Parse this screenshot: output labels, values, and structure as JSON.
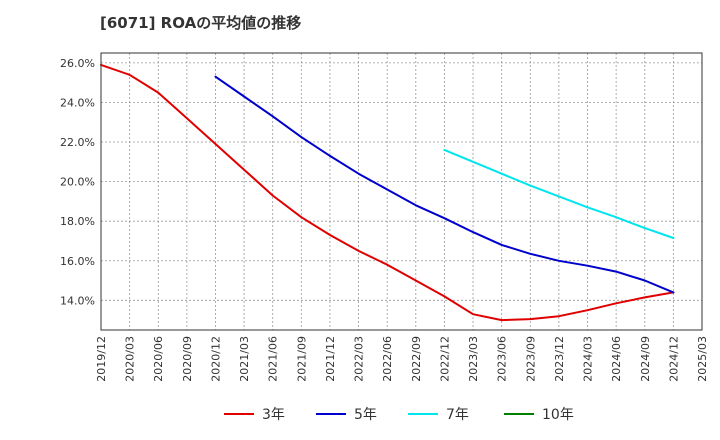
{
  "title": "[6071]  ROAの平均値の推移",
  "chart_data": {
    "type": "line",
    "title": "[6071]  ROAの平均値の推移",
    "xlabel": "",
    "ylabel": "",
    "x_ticks": [
      "2019/12",
      "2020/03",
      "2020/06",
      "2020/09",
      "2020/12",
      "2021/03",
      "2021/06",
      "2021/09",
      "2021/12",
      "2022/03",
      "2022/06",
      "2022/09",
      "2022/12",
      "2023/03",
      "2023/06",
      "2023/09",
      "2023/12",
      "2024/03",
      "2024/06",
      "2024/09",
      "2024/12",
      "2025/03"
    ],
    "y_ticks": [
      "14.0%",
      "16.0%",
      "18.0%",
      "20.0%",
      "22.0%",
      "24.0%",
      "26.0%"
    ],
    "ylim": [
      12.5,
      26.5
    ],
    "grid": true,
    "legend_position": "bottom",
    "series": [
      {
        "name": "3年",
        "color": "#e00000",
        "x": [
          "2019/12",
          "2020/03",
          "2020/06",
          "2020/09",
          "2020/12",
          "2021/03",
          "2021/06",
          "2021/09",
          "2021/12",
          "2022/03",
          "2022/06",
          "2022/09",
          "2022/12",
          "2023/03",
          "2023/06",
          "2023/09",
          "2023/12",
          "2024/03",
          "2024/06",
          "2024/09",
          "2024/12"
        ],
        "values": [
          25.9,
          25.4,
          24.5,
          23.2,
          21.9,
          20.6,
          19.3,
          18.2,
          17.3,
          16.5,
          15.8,
          15.0,
          14.2,
          13.3,
          13.0,
          13.05,
          13.2,
          13.5,
          13.85,
          14.15,
          14.4
        ]
      },
      {
        "name": "5年",
        "color": "#0000cc",
        "x": [
          "2020/12",
          "2021/03",
          "2021/06",
          "2021/09",
          "2021/12",
          "2022/03",
          "2022/06",
          "2022/09",
          "2022/12",
          "2023/03",
          "2023/06",
          "2023/09",
          "2023/12",
          "2024/03",
          "2024/06",
          "2024/09",
          "2024/12"
        ],
        "values": [
          25.3,
          24.3,
          23.3,
          22.25,
          21.3,
          20.4,
          19.6,
          18.8,
          18.15,
          17.45,
          16.8,
          16.35,
          16.0,
          15.75,
          15.45,
          15.0,
          14.4
        ]
      },
      {
        "name": "7年",
        "color": "#00e5ee",
        "x": [
          "2022/12",
          "2023/03",
          "2023/06",
          "2023/09",
          "2023/12",
          "2024/03",
          "2024/06",
          "2024/09",
          "2024/12"
        ],
        "values": [
          21.6,
          21.0,
          20.4,
          19.8,
          19.25,
          18.7,
          18.2,
          17.65,
          17.15
        ]
      },
      {
        "name": "10年",
        "color": "#008000",
        "x": [],
        "values": []
      }
    ]
  }
}
